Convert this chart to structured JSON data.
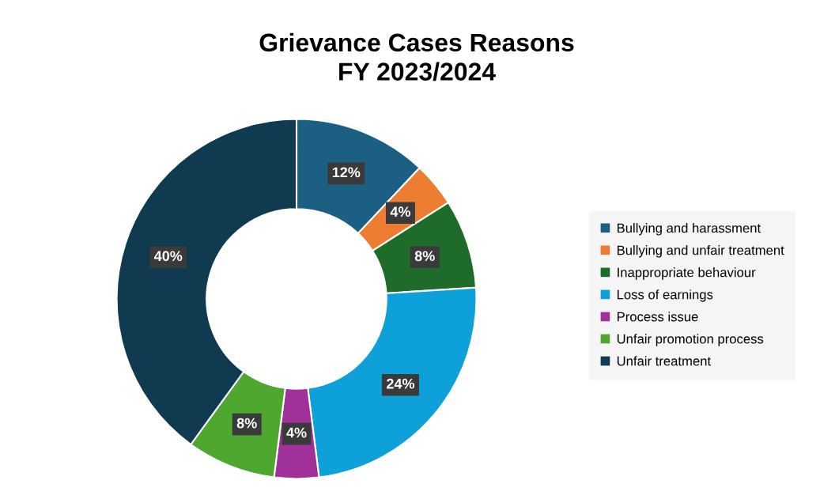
{
  "chart_data": {
    "type": "donut",
    "title": "Grievance Cases Reasons\nFY 2023/2024",
    "categories": [
      "Bullying and harassment",
      "Bullying and unfair treatment",
      "Inappropriate behaviour",
      "Loss of earnings",
      "Process issue",
      "Unfair promotion process",
      "Unfair treatment"
    ],
    "values": [
      12,
      4,
      8,
      24,
      4,
      8,
      40
    ],
    "value_labels": [
      "12%",
      "4%",
      "8%",
      "24%",
      "4%",
      "8%",
      "40%"
    ],
    "colors": [
      "#1b5f82",
      "#ed7d31",
      "#1e6b2a",
      "#0ea0d8",
      "#a0309a",
      "#4ea72e",
      "#0f3a50"
    ],
    "legend": "right"
  }
}
